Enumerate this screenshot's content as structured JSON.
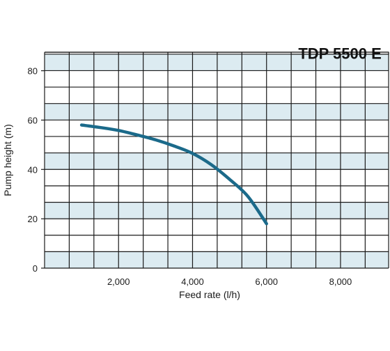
{
  "colors": {
    "grid_line": "#1a1a1a",
    "band_light": "#dcebf1",
    "band_white": "#ffffff",
    "curve": "#1b6a8a",
    "title_box_bg": "#ffffff"
  },
  "chart_data": {
    "type": "line",
    "title": "TDP 5500 E",
    "xlabel": "Feed rate (l/h)",
    "ylabel": "Pump height (m)",
    "xlim": [
      0,
      9300
    ],
    "ylim": [
      0,
      87.5
    ],
    "x_ticks": [
      2000,
      4000,
      6000,
      8000
    ],
    "x_tick_labels": [
      "2,000",
      "4,000",
      "6,000",
      "8,000"
    ],
    "y_ticks": [
      0,
      20,
      40,
      60,
      80
    ],
    "y_tick_labels": [
      "0",
      "20",
      "40",
      "60",
      "80"
    ],
    "grid": true,
    "x_grid_step": 666.67,
    "y_grid_step": 6.67,
    "legend": "none",
    "series": [
      {
        "x": [
          1000,
          1500,
          2000,
          2500,
          3000,
          3500,
          4000,
          4500,
          5000,
          5500,
          6000
        ],
        "y": [
          58,
          57,
          55.8,
          54,
          52,
          49.5,
          46.5,
          42,
          36,
          29,
          18
        ]
      }
    ]
  }
}
